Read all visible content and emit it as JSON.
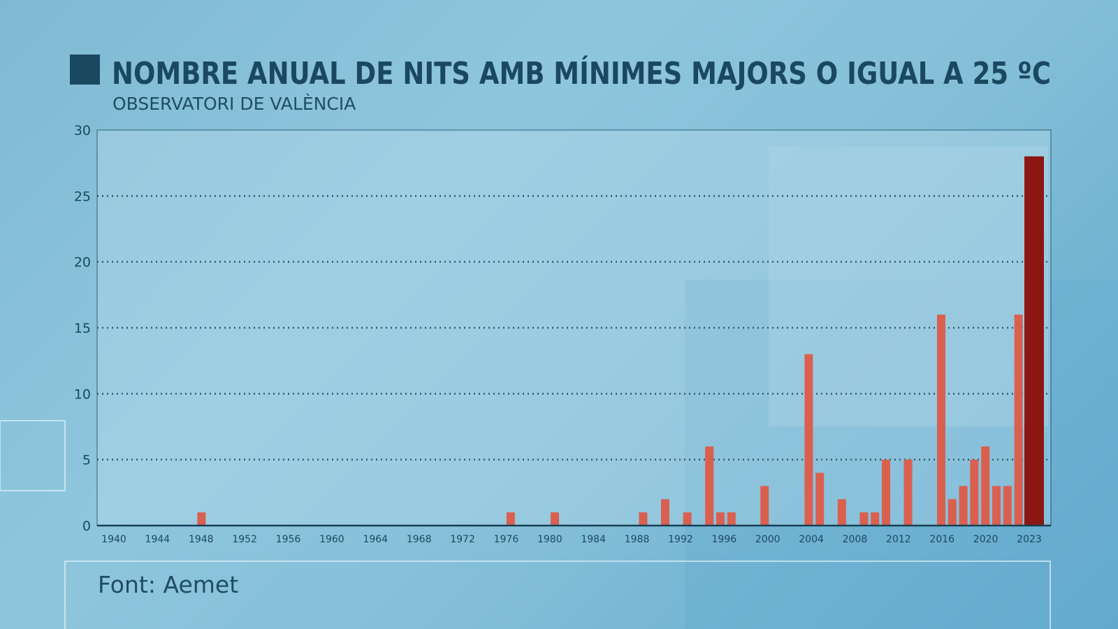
{
  "chart_data": {
    "type": "bar",
    "title": "NOMBRE ANUAL DE NITS AMB MÍNIMES MAJORS O IGUAL A 25 ºC",
    "subtitle": "OBSERVATORI DE VALÈNCIA",
    "source": "Font: Aemet",
    "xlabel": "",
    "ylabel": "",
    "ylim": [
      0,
      30
    ],
    "yticks": [
      "0",
      "5",
      "10",
      "15",
      "20",
      "25",
      "30"
    ],
    "xlim": [
      1940,
      2023
    ],
    "xticks": [
      "1940",
      "1944",
      "1948",
      "1952",
      "1956",
      "1960",
      "1964",
      "1968",
      "1972",
      "1976",
      "1980",
      "1984",
      "1988",
      "1992",
      "1996",
      "2000",
      "2004",
      "2008",
      "2012",
      "2016",
      "2020",
      "2023"
    ],
    "grid": "horizontal dotted",
    "categories": [
      1948,
      1976,
      1980,
      1988,
      1990,
      1992,
      1994,
      1995,
      1996,
      1999,
      2003,
      2004,
      2006,
      2008,
      2009,
      2010,
      2012,
      2015,
      2016,
      2017,
      2018,
      2019,
      2020,
      2021,
      2022,
      2023
    ],
    "values": [
      1,
      1,
      1,
      1,
      2,
      1,
      6,
      1,
      1,
      3,
      13,
      4,
      2,
      1,
      1,
      5,
      5,
      16,
      2,
      3,
      5,
      6,
      3,
      3,
      16,
      28
    ],
    "colors": {
      "bar": "#d9604f",
      "highlight": "#8c1712",
      "highlight_year": 2023,
      "text": "#1b4861",
      "axis": "#173f55"
    }
  }
}
